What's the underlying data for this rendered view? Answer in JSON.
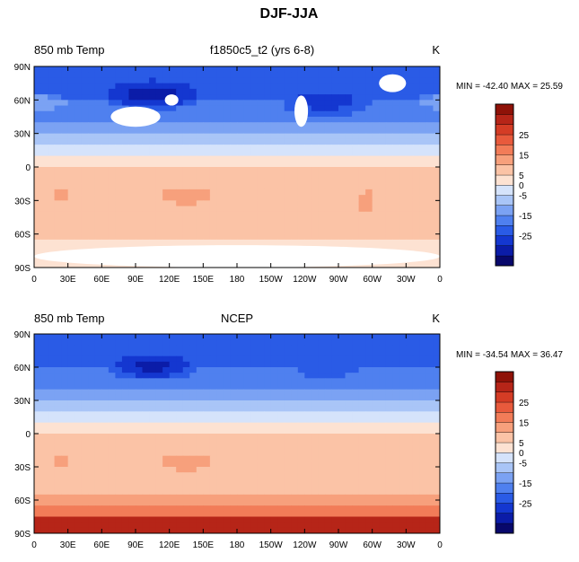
{
  "figure": {
    "title": "DJF-JJA"
  },
  "colorbar": {
    "colors": [
      "#08086b",
      "#0b1ca8",
      "#1437d0",
      "#2a5be6",
      "#4f80ef",
      "#7ba2f3",
      "#a9c5f7",
      "#d5e3fb",
      "#fde2d2",
      "#fbc3a6",
      "#f7a07c",
      "#f27c58",
      "#e85a3c",
      "#d43c25",
      "#b62518",
      "#8f1208"
    ],
    "levels": [
      -35,
      -30,
      -25,
      -20,
      -15,
      -10,
      -5,
      0,
      5,
      10,
      15,
      20,
      25,
      30,
      35
    ],
    "tick_labels": [
      {
        "label": "25",
        "level": 25
      },
      {
        "label": "15",
        "level": 15
      },
      {
        "label": "5",
        "level": 5
      },
      {
        "label": "0",
        "level": 0
      },
      {
        "label": "-5",
        "level": -5
      },
      {
        "label": "-15",
        "level": -15
      },
      {
        "label": "-25",
        "level": -25
      }
    ]
  },
  "chart_data": [
    {
      "type": "heatmap",
      "variable": "850 mb Temp",
      "case": "f1850c5_t2 (yrs 6-8)",
      "units": "K",
      "min_max_text": "MIN = -42.40 MAX =  25.59",
      "min": -42.4,
      "max": 25.59,
      "x_tick_labels": [
        "0",
        "30E",
        "60E",
        "90E",
        "120E",
        "150E",
        "180",
        "150W",
        "120W",
        "90W",
        "60W",
        "30W",
        "0"
      ],
      "y_tick_labels": [
        "90N",
        "60N",
        "30N",
        "0",
        "30S",
        "60S",
        "90S"
      ],
      "xlim": [
        0,
        360
      ],
      "ylim": [
        -90,
        90
      ],
      "zonal_bands": [
        {
          "lat": [
            60,
            90
          ],
          "value": -22
        },
        {
          "lat": [
            40,
            60
          ],
          "value": -18
        },
        {
          "lat": [
            30,
            40
          ],
          "value": -12
        },
        {
          "lat": [
            20,
            30
          ],
          "value": -7
        },
        {
          "lat": [
            10,
            20
          ],
          "value": -3
        },
        {
          "lat": [
            0,
            10
          ],
          "value": 2
        },
        {
          "lat": [
            -20,
            0
          ],
          "value": 6
        },
        {
          "lat": [
            -40,
            -20
          ],
          "value": 9
        },
        {
          "lat": [
            -55,
            -40
          ],
          "value": 8
        },
        {
          "lat": [
            -65,
            -55
          ],
          "value": 6
        },
        {
          "lat": [
            -90,
            -65
          ],
          "value": 3
        }
      ],
      "anomalies": [
        {
          "lon": 105,
          "lat": 65,
          "rlon": 50,
          "rlat": 15,
          "value": -32
        },
        {
          "lon": 135,
          "lat": 35,
          "rlon": 20,
          "rlat": 8,
          "value": -14
        },
        {
          "lon": 260,
          "lat": 58,
          "rlon": 45,
          "rlat": 14,
          "value": -27
        },
        {
          "lon": 5,
          "lat": 58,
          "rlon": 30,
          "rlat": 8,
          "value": -10
        },
        {
          "lon": 135,
          "lat": -25,
          "rlon": 22,
          "rlat": 10,
          "value": 13
        },
        {
          "lon": 25,
          "lat": -25,
          "rlon": 10,
          "rlat": 8,
          "value": 12
        },
        {
          "lon": 295,
          "lat": -32,
          "rlon": 8,
          "rlat": 12,
          "value": 13
        }
      ],
      "missing_regions": [
        {
          "lon": 90,
          "lat": 45,
          "rlon": 22,
          "rlat": 9
        },
        {
          "lon": 122,
          "lat": 60,
          "rlon": 6,
          "rlat": 5
        },
        {
          "lon": 237,
          "lat": 50,
          "rlon": 6,
          "rlat": 14
        },
        {
          "lon": 318,
          "lat": 75,
          "rlon": 12,
          "rlat": 8
        },
        {
          "lon": 180,
          "lat": -80,
          "rlon": 180,
          "rlat": 10
        }
      ]
    },
    {
      "type": "heatmap",
      "variable": "850 mb Temp",
      "case": "NCEP",
      "units": "K",
      "min_max_text": "MIN = -34.54 MAX =  36.47",
      "min": -34.54,
      "max": 36.47,
      "x_tick_labels": [
        "0",
        "30E",
        "60E",
        "90E",
        "120E",
        "150E",
        "180",
        "150W",
        "120W",
        "90W",
        "60W",
        "30W",
        "0"
      ],
      "y_tick_labels": [
        "90N",
        "60N",
        "30N",
        "0",
        "30S",
        "60S",
        "90S"
      ],
      "xlim": [
        0,
        360
      ],
      "ylim": [
        -90,
        90
      ],
      "zonal_bands": [
        {
          "lat": [
            60,
            90
          ],
          "value": -22
        },
        {
          "lat": [
            40,
            60
          ],
          "value": -17
        },
        {
          "lat": [
            30,
            40
          ],
          "value": -11
        },
        {
          "lat": [
            20,
            30
          ],
          "value": -6
        },
        {
          "lat": [
            10,
            20
          ],
          "value": -3
        },
        {
          "lat": [
            0,
            10
          ],
          "value": 2
        },
        {
          "lat": [
            -20,
            0
          ],
          "value": 6
        },
        {
          "lat": [
            -40,
            -20
          ],
          "value": 9
        },
        {
          "lat": [
            -55,
            -40
          ],
          "value": 8
        },
        {
          "lat": [
            -65,
            -55
          ],
          "value": 12
        },
        {
          "lat": [
            -75,
            -65
          ],
          "value": 18
        },
        {
          "lat": [
            -90,
            -75
          ],
          "value": 30
        }
      ],
      "anomalies": [
        {
          "lon": 105,
          "lat": 60,
          "rlon": 45,
          "rlat": 14,
          "value": -31
        },
        {
          "lon": 260,
          "lat": 58,
          "rlon": 40,
          "rlat": 13,
          "value": -22
        },
        {
          "lon": 135,
          "lat": -25,
          "rlon": 22,
          "rlat": 10,
          "value": 13
        },
        {
          "lon": 25,
          "lat": -25,
          "rlon": 10,
          "rlat": 8,
          "value": 12
        }
      ],
      "missing_regions": []
    }
  ]
}
